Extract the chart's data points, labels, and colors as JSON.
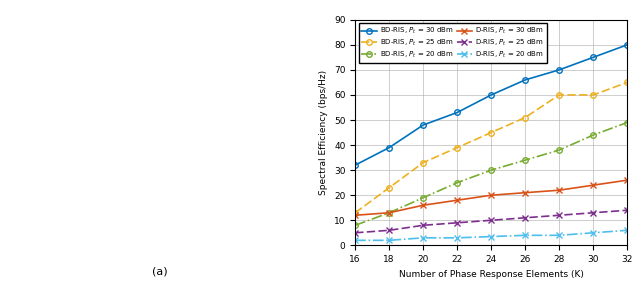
{
  "x": [
    16,
    18,
    20,
    22,
    24,
    26,
    28,
    30,
    32
  ],
  "bd_ris_30": [
    32,
    39,
    48,
    53,
    60,
    66,
    70,
    75,
    80
  ],
  "bd_ris_25": [
    13,
    23,
    33,
    39,
    45,
    51,
    60,
    60,
    65
  ],
  "bd_ris_20": [
    8,
    13,
    19,
    25,
    30,
    34,
    38,
    44,
    49
  ],
  "d_ris_30": [
    12,
    13,
    16,
    18,
    20,
    21,
    22,
    24,
    26
  ],
  "d_ris_25": [
    5,
    6,
    8,
    9,
    10,
    11,
    12,
    13,
    14
  ],
  "d_ris_20": [
    2,
    2,
    3,
    3,
    3.5,
    4,
    4,
    5,
    6
  ],
  "colors": {
    "bd_ris_30": "#0072BD",
    "bd_ris_25": "#EDB120",
    "bd_ris_20": "#77AC30",
    "d_ris_30": "#D95319",
    "d_ris_25": "#7E2F8E",
    "d_ris_20": "#4DBEEE"
  },
  "ylabel": "Spectral Efficiency (bps/Hz)",
  "xlabel": "Number of Phase Response Elements (K)",
  "ylim": [
    0,
    90
  ],
  "xlim": [
    16,
    32
  ],
  "xticks": [
    16,
    18,
    20,
    22,
    24,
    26,
    28,
    30,
    32
  ],
  "yticks": [
    0,
    10,
    20,
    30,
    40,
    50,
    60,
    70,
    80,
    90
  ],
  "figsize": [
    6.4,
    2.82
  ],
  "dpi": 100,
  "label_bd30": "BD-RIS, $P_t$ = 30 dBm",
  "label_bd25": "BD-RIS, $P_t$ = 25 dBm",
  "label_bd20": "BD-RIS, $P_t$ = 20 dBm",
  "label_d30": "D-RIS, $P_t$ = 30 dBm",
  "label_d25": "D-RIS, $P_t$ = 25 dBm",
  "label_d20": "D-RIS, $P_t$ = 20 dBm"
}
